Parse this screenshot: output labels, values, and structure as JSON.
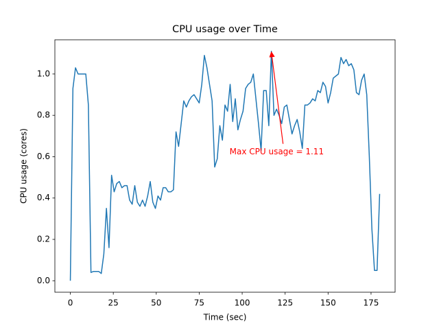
{
  "chart_data": {
    "type": "line",
    "title": "CPU usage over Time",
    "xlabel": "Time (sec)",
    "ylabel": "CPU usage (cores)",
    "xlim": [
      -9,
      189
    ],
    "ylim": [
      -0.0555,
      1.1655
    ],
    "xticks": [
      0,
      25,
      50,
      75,
      100,
      125,
      150,
      175
    ],
    "yticks": [
      {
        "value": 0,
        "label": "0.0"
      },
      {
        "value": 0.2,
        "label": "0.2"
      },
      {
        "value": 0.4,
        "label": "0.4"
      },
      {
        "value": 0.6,
        "label": "0.6"
      },
      {
        "value": 0.8,
        "label": "0.8"
      },
      {
        "value": 1.0,
        "label": "1.0"
      }
    ],
    "grid": false,
    "series": [
      {
        "color": "#1f77b4",
        "x": [
          0,
          1.5,
          3,
          4.5,
          6,
          7.5,
          9,
          10.5,
          12,
          13.5,
          15,
          16.5,
          18,
          19.5,
          21,
          22.5,
          24,
          25.5,
          27,
          28.5,
          30,
          31.5,
          33,
          34.5,
          36,
          37.5,
          39,
          40.5,
          42,
          43.5,
          45,
          46.5,
          48,
          49.5,
          51,
          52.5,
          54,
          55.5,
          57,
          58.5,
          60,
          61.5,
          63,
          64.5,
          66,
          67.5,
          69,
          70.5,
          72,
          73.5,
          75,
          76.5,
          78,
          79.5,
          81,
          82.5,
          84,
          85.5,
          87,
          88.5,
          90,
          91.5,
          93,
          94.5,
          96,
          97.5,
          99,
          100.5,
          102,
          103.5,
          105,
          106.5,
          108,
          109.5,
          111,
          112.5,
          114,
          115.5,
          117,
          118.5,
          120,
          121.5,
          123,
          124.5,
          126,
          127.5,
          129,
          130.5,
          132,
          133.5,
          135,
          136.5,
          138,
          139.5,
          141,
          142.5,
          144,
          145.5,
          147,
          148.5,
          150,
          151.5,
          153,
          154.5,
          156,
          157.5,
          159,
          160.5,
          162,
          163.5,
          165,
          166.5,
          168,
          169.5,
          171,
          172.5,
          174,
          175.5,
          177,
          178.5,
          180
        ],
        "values": [
          0,
          0.93,
          1.03,
          1.0,
          1.0,
          1.0,
          1.0,
          0.85,
          0.04,
          0.045,
          0.045,
          0.045,
          0.035,
          0.13,
          0.35,
          0.16,
          0.51,
          0.43,
          0.47,
          0.48,
          0.45,
          0.46,
          0.46,
          0.39,
          0.37,
          0.46,
          0.38,
          0.36,
          0.39,
          0.36,
          0.41,
          0.48,
          0.38,
          0.35,
          0.41,
          0.39,
          0.45,
          0.45,
          0.43,
          0.43,
          0.44,
          0.72,
          0.65,
          0.76,
          0.87,
          0.84,
          0.87,
          0.89,
          0.9,
          0.88,
          0.86,
          0.95,
          1.09,
          1.03,
          0.95,
          0.87,
          0.55,
          0.59,
          0.75,
          0.68,
          0.85,
          0.82,
          0.95,
          0.77,
          0.88,
          0.73,
          0.78,
          0.82,
          0.93,
          0.95,
          0.96,
          1.0,
          0.88,
          0.76,
          0.63,
          0.92,
          0.92,
          0.75,
          1.11,
          0.8,
          0.83,
          0.8,
          0.76,
          0.84,
          0.85,
          0.78,
          0.71,
          0.75,
          0.78,
          0.72,
          0.64,
          0.85,
          0.85,
          0.86,
          0.88,
          0.87,
          0.92,
          0.91,
          0.96,
          0.94,
          0.86,
          0.91,
          0.98,
          0.99,
          1.0,
          1.08,
          1.05,
          1.07,
          1.04,
          1.05,
          1.02,
          0.91,
          0.9,
          0.97,
          1.0,
          0.9,
          0.6,
          0.25,
          0.05,
          0.05,
          0.42
        ]
      }
    ],
    "annotation": {
      "text": "Max CPU usage = 1.11",
      "x": 117,
      "y": 1.11,
      "color": "red"
    }
  }
}
